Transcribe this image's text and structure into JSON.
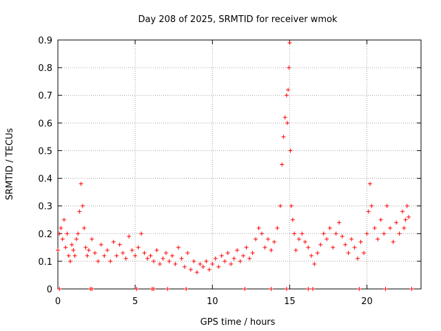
{
  "chart_data": {
    "type": "scatter",
    "title": "Day 208 of 2025, SRMTID for receiver wmok",
    "xlabel": "GPS time / hours",
    "ylabel": "SRMTID / TECUs",
    "xlim": [
      0,
      23.5
    ],
    "ylim": [
      0,
      0.9
    ],
    "xticks": [
      0,
      5,
      10,
      15,
      20
    ],
    "yticks": [
      0,
      0.1,
      0.2,
      0.3,
      0.4,
      0.5,
      0.6,
      0.7,
      0.8,
      0.9
    ],
    "grid": true,
    "marker": "+",
    "color": "#ff0000",
    "series": [
      {
        "name": "SRMTID",
        "x": [
          0.0,
          0.1,
          0.2,
          0.3,
          0.4,
          0.5,
          0.6,
          0.7,
          0.8,
          0.9,
          1.0,
          1.1,
          1.2,
          1.3,
          1.4,
          1.5,
          1.6,
          1.7,
          1.8,
          1.9,
          2.0,
          2.2,
          2.4,
          2.6,
          2.8,
          3.0,
          3.2,
          3.4,
          3.6,
          3.8,
          4.0,
          4.2,
          4.4,
          4.6,
          4.8,
          5.0,
          5.2,
          5.4,
          5.6,
          5.8,
          6.0,
          6.2,
          6.4,
          6.6,
          6.8,
          7.0,
          7.2,
          7.4,
          7.6,
          7.8,
          8.0,
          8.2,
          8.4,
          8.6,
          8.8,
          9.0,
          9.2,
          9.4,
          9.6,
          9.8,
          10.0,
          10.2,
          10.4,
          10.6,
          10.8,
          11.0,
          11.2,
          11.4,
          11.6,
          11.8,
          12.0,
          12.2,
          12.4,
          12.6,
          12.8,
          13.0,
          13.2,
          13.4,
          13.6,
          13.8,
          14.0,
          14.2,
          14.4,
          14.5,
          14.6,
          14.7,
          14.8,
          14.85,
          14.9,
          14.95,
          15.0,
          15.05,
          15.1,
          15.2,
          15.3,
          15.4,
          15.6,
          15.8,
          16.0,
          16.2,
          16.4,
          16.6,
          16.8,
          17.0,
          17.2,
          17.4,
          17.6,
          17.8,
          18.0,
          18.2,
          18.4,
          18.6,
          18.8,
          19.0,
          19.2,
          19.4,
          19.6,
          19.8,
          20.0,
          20.1,
          20.2,
          20.3,
          20.5,
          20.7,
          20.9,
          21.1,
          21.3,
          21.5,
          21.7,
          21.9,
          22.1,
          22.3,
          22.4,
          22.5,
          22.6,
          22.7
        ],
        "y": [
          0.14,
          0.2,
          0.22,
          0.18,
          0.25,
          0.15,
          0.2,
          0.12,
          0.1,
          0.16,
          0.14,
          0.12,
          0.18,
          0.2,
          0.28,
          0.38,
          0.3,
          0.22,
          0.15,
          0.12,
          0.14,
          0.18,
          0.13,
          0.1,
          0.16,
          0.12,
          0.14,
          0.1,
          0.17,
          0.12,
          0.16,
          0.13,
          0.11,
          0.19,
          0.14,
          0.12,
          0.15,
          0.2,
          0.13,
          0.11,
          0.12,
          0.1,
          0.14,
          0.09,
          0.11,
          0.13,
          0.1,
          0.12,
          0.09,
          0.15,
          0.11,
          0.08,
          0.13,
          0.07,
          0.1,
          0.06,
          0.09,
          0.08,
          0.1,
          0.07,
          0.09,
          0.11,
          0.08,
          0.12,
          0.1,
          0.13,
          0.09,
          0.11,
          0.14,
          0.1,
          0.12,
          0.15,
          0.11,
          0.13,
          0.18,
          0.22,
          0.2,
          0.15,
          0.18,
          0.14,
          0.17,
          0.22,
          0.3,
          0.45,
          0.55,
          0.62,
          0.7,
          0.6,
          0.72,
          0.8,
          0.89,
          0.5,
          0.3,
          0.25,
          0.2,
          0.14,
          0.18,
          0.2,
          0.17,
          0.15,
          0.12,
          0.09,
          0.13,
          0.16,
          0.2,
          0.18,
          0.22,
          0.15,
          0.2,
          0.24,
          0.19,
          0.16,
          0.13,
          0.18,
          0.15,
          0.11,
          0.17,
          0.13,
          0.2,
          0.28,
          0.38,
          0.3,
          0.22,
          0.18,
          0.25,
          0.2,
          0.3,
          0.22,
          0.17,
          0.24,
          0.2,
          0.28,
          0.22,
          0.25,
          0.3,
          0.26
        ]
      }
    ],
    "zero_markers_x": [
      0.1,
      2.1,
      2.2,
      5.1,
      6.1,
      6.2,
      7.1,
      8.3,
      12.1,
      13.8,
      14.8,
      16.2,
      16.5,
      19.5,
      21.2,
      22.9
    ]
  }
}
